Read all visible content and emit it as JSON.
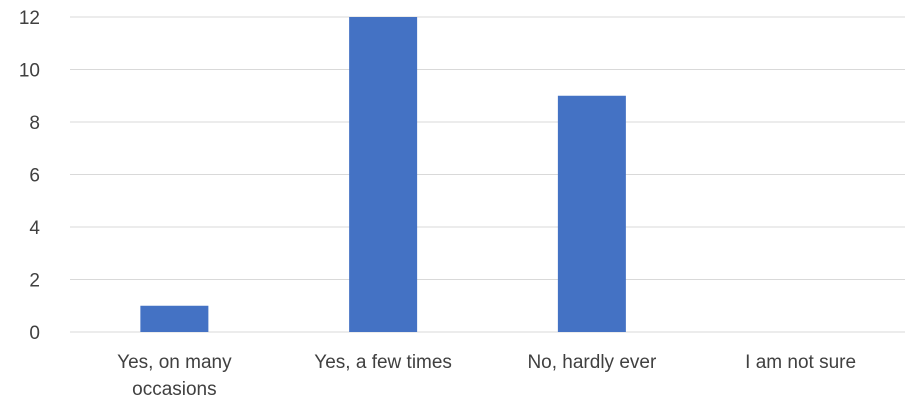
{
  "chart_data": {
    "type": "bar",
    "categories": [
      [
        "Yes, on many",
        "occasions"
      ],
      [
        "Yes, a few times"
      ],
      [
        "No, hardly ever"
      ],
      [
        "I am not sure"
      ]
    ],
    "values": [
      1,
      12,
      9,
      0
    ],
    "ylim": [
      0,
      12
    ],
    "yticks": [
      "0",
      "2",
      "4",
      "6",
      "8",
      "10",
      "12"
    ],
    "title": "",
    "xlabel": "",
    "ylabel": "",
    "grid": true,
    "legend": "none",
    "colors": {
      "bar": "#4472C4",
      "grid": "#D9D9D9",
      "text": "#404040"
    }
  }
}
